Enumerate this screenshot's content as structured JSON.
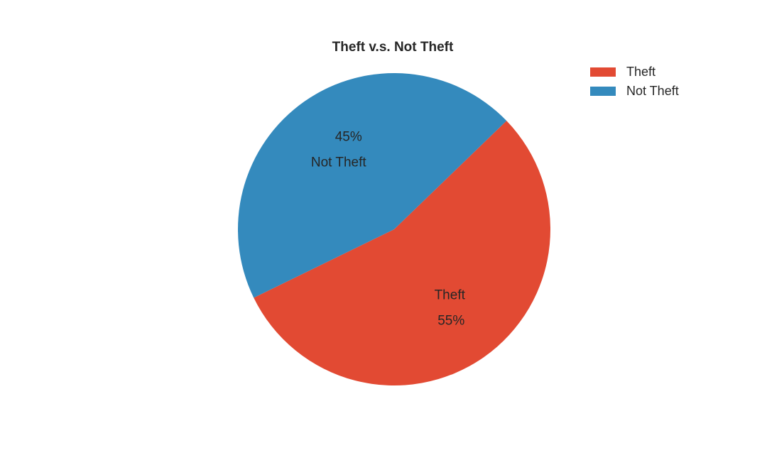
{
  "chart_data": {
    "type": "pie",
    "title": "Theft v.s. Not Theft",
    "slices": [
      {
        "label": "Theft",
        "value": 55,
        "pct_label": "55%",
        "color": "#e24a33"
      },
      {
        "label": "Not Theft",
        "value": 45,
        "pct_label": "45%",
        "color": "#348abd"
      }
    ],
    "legend": {
      "placement": "top-right",
      "entries": [
        "Theft",
        "Not Theft"
      ]
    }
  }
}
